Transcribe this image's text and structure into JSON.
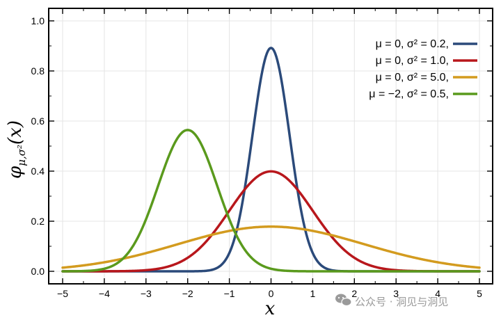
{
  "chart_data": {
    "type": "line",
    "title": "",
    "xlabel": "x",
    "ylabel": "φ",
    "ylabel_subscript": "μ,σ²",
    "ylabel_suffix": "(x)",
    "xlim": [
      -5,
      5
    ],
    "ylim": [
      0,
      1.05
    ],
    "x_ticks": [
      -5,
      -4,
      -3,
      -2,
      -1,
      0,
      1,
      2,
      3,
      4,
      5
    ],
    "x_tick_labels": [
      "−5",
      "−4",
      "−3",
      "−2",
      "−1",
      "0",
      "1",
      "2",
      "3",
      "4",
      "5"
    ],
    "y_ticks": [
      0,
      0.2,
      0.4,
      0.6,
      0.8,
      1.0
    ],
    "y_tick_labels": [
      "0.0",
      "0.2",
      "0.4",
      "0.6",
      "0.8",
      "1.0"
    ],
    "grid": true,
    "legend_position": "top-right",
    "series": [
      {
        "name": "μ = 0,   σ² = 0.2,",
        "mu": 0,
        "variance": 0.2,
        "color": "#2b4a7a"
      },
      {
        "name": "μ = 0,   σ² = 1.0,",
        "mu": 0,
        "variance": 1.0,
        "color": "#b8171c"
      },
      {
        "name": "μ = 0,   σ² = 5.0,",
        "mu": 0,
        "variance": 5.0,
        "color": "#d39b1f"
      },
      {
        "name": "μ = −2, σ² = 0.5,",
        "mu": -2,
        "variance": 0.5,
        "color": "#5a9a1d"
      }
    ]
  },
  "watermark": {
    "text": "公众号 · 洞见与洞见",
    "icon": "wechat-icon",
    "color": "#9a9a9a"
  }
}
